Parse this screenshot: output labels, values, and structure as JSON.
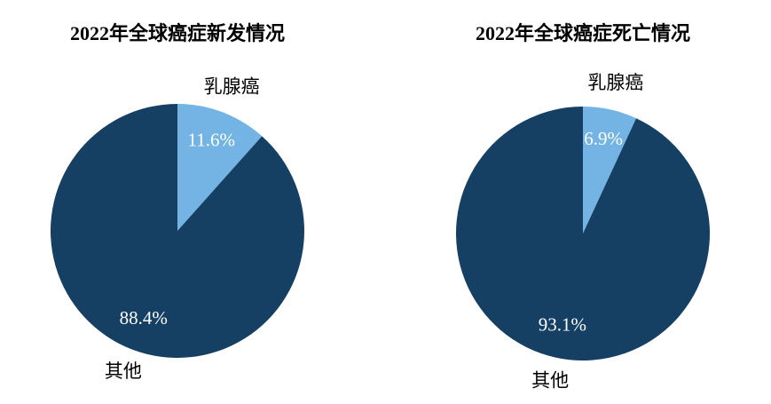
{
  "chart_data": [
    {
      "type": "pie",
      "title": "2022年全球癌症新发情况",
      "categories": [
        "乳腺癌",
        "其他"
      ],
      "values": [
        11.6,
        88.4
      ],
      "value_labels": [
        "11.6%",
        "88.4%"
      ],
      "colors": [
        "#74b4e4",
        "#163f64"
      ]
    },
    {
      "type": "pie",
      "title": "2022年全球癌症死亡情况",
      "categories": [
        "乳腺癌",
        "其他"
      ],
      "values": [
        6.9,
        93.1
      ],
      "value_labels": [
        "6.9%",
        "93.1%"
      ],
      "colors": [
        "#74b4e4",
        "#163f64"
      ]
    }
  ]
}
